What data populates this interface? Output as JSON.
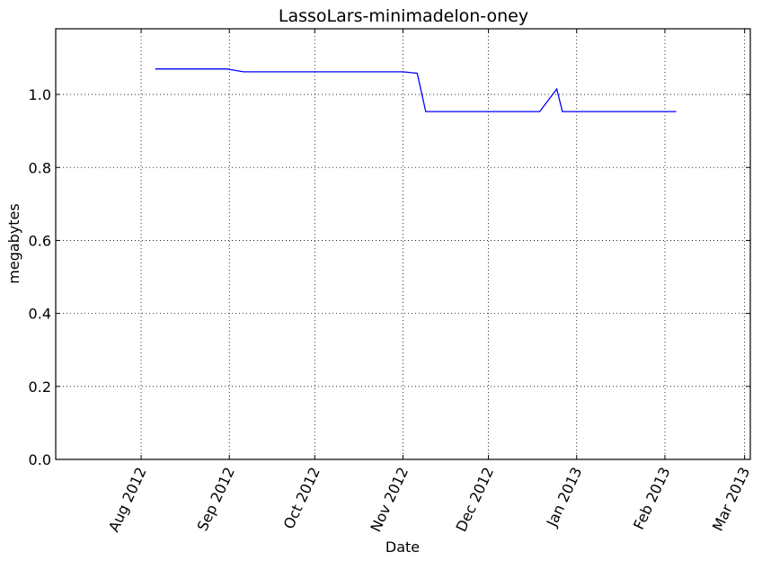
{
  "chart_data": {
    "type": "line",
    "title": "LassoLars-minimadelon-oney",
    "xlabel": "Date",
    "ylabel": "megabytes",
    "xlim": [
      "2012-07-02",
      "2013-03-03"
    ],
    "ylim": [
      0,
      1.18
    ],
    "grid": true,
    "x_ticks": [
      {
        "date": "2012-08-01",
        "label": "Aug 2012"
      },
      {
        "date": "2012-09-01",
        "label": "Sep 2012"
      },
      {
        "date": "2012-10-01",
        "label": "Oct 2012"
      },
      {
        "date": "2012-11-01",
        "label": "Nov 2012"
      },
      {
        "date": "2012-12-01",
        "label": "Dec 2012"
      },
      {
        "date": "2013-01-01",
        "label": "Jan 2013"
      },
      {
        "date": "2013-02-01",
        "label": "Feb 2013"
      },
      {
        "date": "2013-03-01",
        "label": "Mar 2013"
      }
    ],
    "y_ticks": [
      {
        "value": 0.0,
        "label": "0.0"
      },
      {
        "value": 0.2,
        "label": "0.2"
      },
      {
        "value": 0.4,
        "label": "0.4"
      },
      {
        "value": 0.6,
        "label": "0.6"
      },
      {
        "value": 0.8,
        "label": "0.8"
      },
      {
        "value": 1.0,
        "label": "1.0"
      }
    ],
    "series": [
      {
        "name": "LassoLars-minimadelon-oney",
        "color": "#0000ff",
        "points": [
          {
            "x": "2012-08-06",
            "y": 1.07
          },
          {
            "x": "2012-08-31",
            "y": 1.07
          },
          {
            "x": "2012-09-06",
            "y": 1.062
          },
          {
            "x": "2012-11-01",
            "y": 1.062
          },
          {
            "x": "2012-11-06",
            "y": 1.058
          },
          {
            "x": "2012-11-09",
            "y": 0.953
          },
          {
            "x": "2012-12-19",
            "y": 0.953
          },
          {
            "x": "2012-12-25",
            "y": 1.015
          },
          {
            "x": "2012-12-27",
            "y": 0.953
          },
          {
            "x": "2013-02-05",
            "y": 0.953
          }
        ]
      }
    ]
  }
}
